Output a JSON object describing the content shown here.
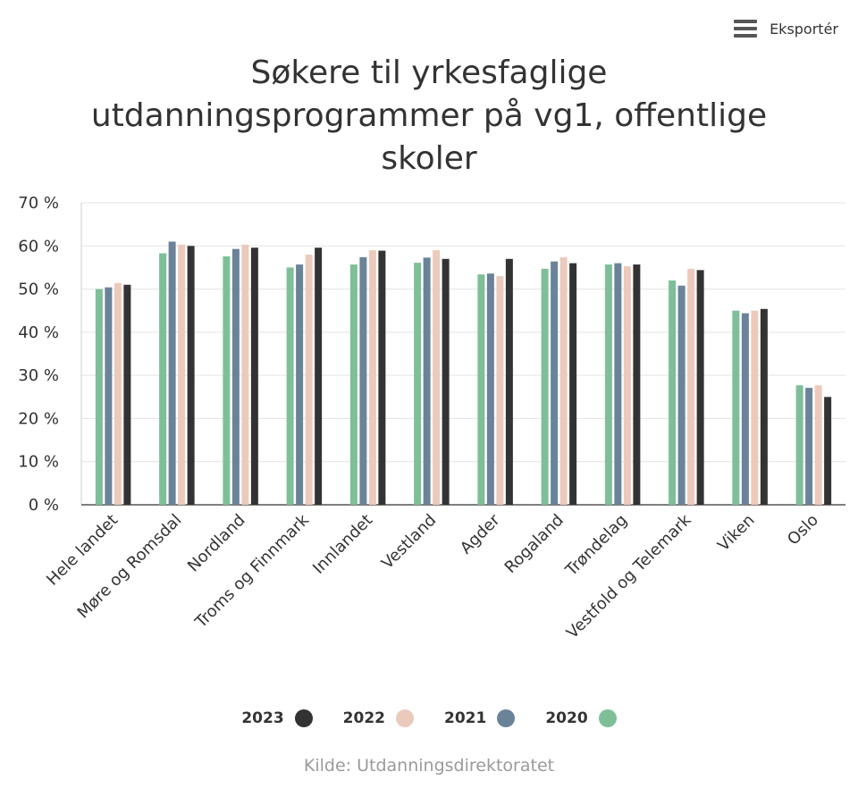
{
  "export": {
    "label": "Eksportér",
    "icon": "hamburger-menu-icon"
  },
  "title_lines": [
    "Søkere til yrkesfaglige",
    "utdanningsprogrammer på vg1, offentlige",
    "skoler"
  ],
  "source": "Kilde: Utdanningsdirektoratet",
  "legend": [
    {
      "label": "2023",
      "color": "#333333"
    },
    {
      "label": "2022",
      "color": "#eccabb"
    },
    {
      "label": "2021",
      "color": "#6a8399"
    },
    {
      "label": "2020",
      "color": "#7ebf98"
    }
  ],
  "chart_data": {
    "type": "bar",
    "title": "Søkere til yrkesfaglige utdanningsprogrammer på vg1, offentlige skoler",
    "xlabel": "",
    "ylabel": "",
    "ylim": [
      0,
      70
    ],
    "yticks": [
      0,
      10,
      20,
      30,
      40,
      50,
      60,
      70
    ],
    "ytick_labels": [
      "0 %",
      "10 %",
      "20 %",
      "30 %",
      "40 %",
      "50 %",
      "60 %",
      "70 %"
    ],
    "grid": true,
    "legend_position": "bottom",
    "categories": [
      "Hele landet",
      "Møre og Romsdal",
      "Nordland",
      "Troms og Finnmark",
      "Innlandet",
      "Vestland",
      "Agder",
      "Rogaland",
      "Trøndelag",
      "Vestfold og Telemark",
      "Viken",
      "Oslo"
    ],
    "series": [
      {
        "name": "2020",
        "color": "#7ebf98",
        "values": [
          50.0,
          58.3,
          57.6,
          55.0,
          55.7,
          56.1,
          53.4,
          54.7,
          55.7,
          52.0,
          45.0,
          27.7
        ]
      },
      {
        "name": "2021",
        "color": "#6a8399",
        "values": [
          50.4,
          61.0,
          59.3,
          55.7,
          57.4,
          57.3,
          53.6,
          56.4,
          56.0,
          50.8,
          44.4,
          27.1
        ]
      },
      {
        "name": "2022",
        "color": "#eccabb",
        "values": [
          51.4,
          60.3,
          60.3,
          58.0,
          59.0,
          59.0,
          53.0,
          57.4,
          55.3,
          54.7,
          45.0,
          27.7
        ]
      },
      {
        "name": "2023",
        "color": "#333333",
        "values": [
          51.0,
          60.0,
          59.6,
          59.6,
          58.9,
          57.0,
          57.0,
          56.0,
          55.7,
          54.4,
          45.4,
          25.0
        ]
      }
    ]
  }
}
